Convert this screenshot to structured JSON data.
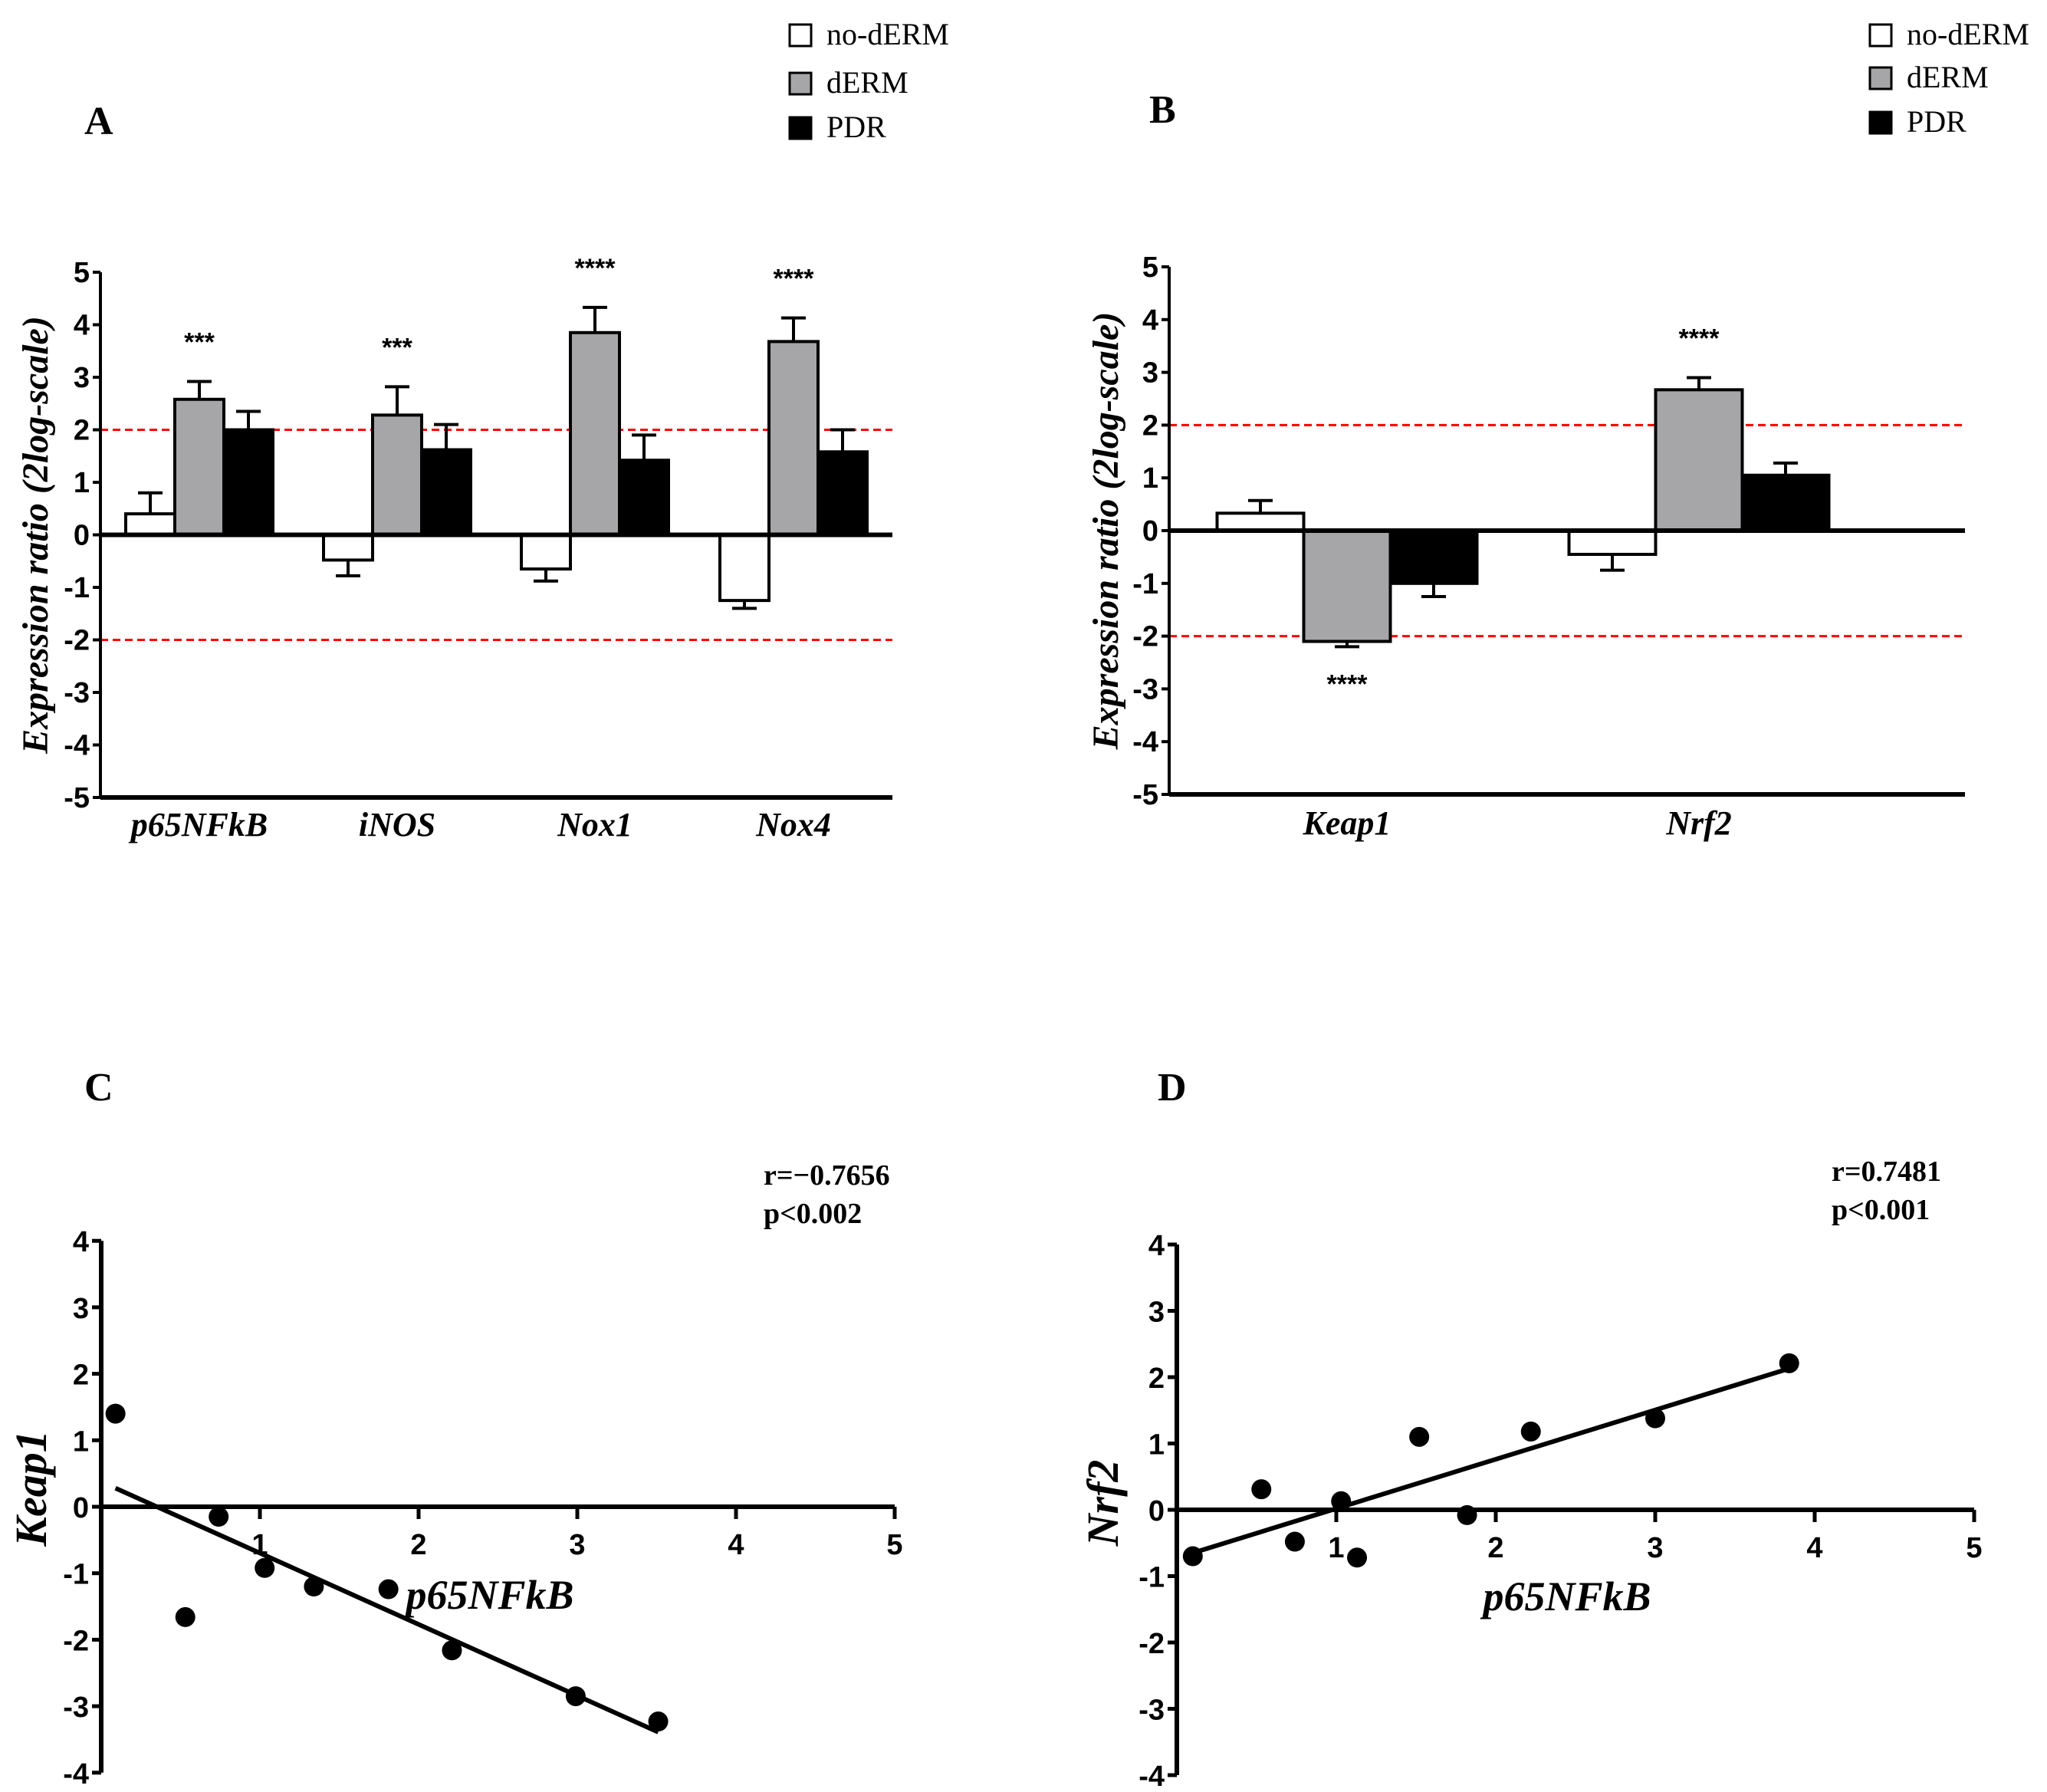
{
  "chart_data": [
    {
      "panel": "A",
      "type": "bar",
      "categories": [
        "p65NFkB",
        "iNOS",
        "Nox1",
        "Nox4"
      ],
      "legend": [
        "no-dERM",
        "dERM",
        "PDR"
      ],
      "legend_placement": "top-right",
      "series_colors": [
        "#ffffff",
        "#a6a6a9",
        "#000000"
      ],
      "series": [
        {
          "name": "no-dERM",
          "values": [
            0.4,
            -0.48,
            -0.65,
            -1.25
          ],
          "error_upper": [
            0.8,
            -0.78,
            -0.88,
            -1.4
          ]
        },
        {
          "name": "dERM",
          "values": [
            2.58,
            2.28,
            3.85,
            3.68
          ],
          "error_upper": [
            2.92,
            2.82,
            4.33,
            4.13
          ]
        },
        {
          "name": "PDR",
          "values": [
            2.0,
            1.62,
            1.42,
            1.58
          ],
          "error_upper": [
            2.35,
            2.1,
            1.9,
            2.0
          ]
        }
      ],
      "significance": [
        {
          "category": "p65NFkB",
          "series": "dERM",
          "label": "***"
        },
        {
          "category": "iNOS",
          "series": "dERM",
          "label": "***"
        },
        {
          "category": "Nox1",
          "series": "dERM",
          "label": "****"
        },
        {
          "category": "Nox4",
          "series": "dERM",
          "label": "****"
        }
      ],
      "reference_lines": [
        2,
        -2
      ],
      "reference_line_color": "#ff0000",
      "ylabel": "Expression ratio (2log-scale)",
      "xlabel": "",
      "ylim": [
        -5,
        5
      ],
      "yticks": [
        "5",
        "4",
        "3",
        "2",
        "1",
        "0",
        "-1",
        "-2",
        "-3",
        "-4",
        "-5"
      ],
      "grid": false
    },
    {
      "panel": "B",
      "type": "bar",
      "categories": [
        "Keap1",
        "Nrf2"
      ],
      "legend": [
        "no-dERM",
        "dERM",
        "PDR"
      ],
      "legend_placement": "top-right",
      "series_colors": [
        "#ffffff",
        "#a6a6a9",
        "#000000"
      ],
      "series": [
        {
          "name": "no-dERM",
          "values": [
            0.33,
            -0.45
          ],
          "error_upper": [
            0.57,
            -0.75
          ]
        },
        {
          "name": "dERM",
          "values": [
            -2.1,
            2.67
          ],
          "error_upper": [
            -2.2,
            2.9
          ]
        },
        {
          "name": "PDR",
          "values": [
            -1.0,
            1.05
          ],
          "error_upper": [
            -1.25,
            1.28
          ]
        }
      ],
      "significance": [
        {
          "category": "Keap1",
          "series": "dERM",
          "label": "****"
        },
        {
          "category": "Nrf2",
          "series": "dERM",
          "label": "****"
        }
      ],
      "reference_lines": [
        2,
        -2
      ],
      "reference_line_color": "#ff0000",
      "ylabel": "Expression ratio (2log-scale)",
      "xlabel": "",
      "ylim": [
        -5,
        5
      ],
      "yticks": [
        "5",
        "4",
        "3",
        "2",
        "1",
        "0",
        "-1",
        "-2",
        "-3",
        "-4",
        "-5"
      ],
      "grid": false
    },
    {
      "panel": "C",
      "type": "scatter",
      "xlabel": "p65NFkB",
      "ylabel": "Keap1",
      "x": [
        0.09,
        0.53,
        0.74,
        1.03,
        1.34,
        1.81,
        2.21,
        2.99,
        3.51
      ],
      "y": [
        1.4,
        -1.66,
        -0.15,
        -0.92,
        -1.2,
        -1.24,
        -2.16,
        -2.85,
        -3.23
      ],
      "fit_line": {
        "x": [
          0.09,
          3.51
        ],
        "y": [
          0.28,
          -3.39
        ]
      },
      "annotation": [
        "r=−0.7656",
        "p<0.002"
      ],
      "xlim": [
        0,
        5
      ],
      "ylim": [
        -4,
        4
      ],
      "xticks": [
        "1",
        "2",
        "3",
        "4",
        "5"
      ],
      "yticks": [
        "4",
        "3",
        "2",
        "1",
        "0",
        "-1",
        "-2",
        "-3",
        "-4"
      ],
      "grid": false
    },
    {
      "panel": "D",
      "type": "scatter",
      "xlabel": "p65NFkB",
      "ylabel": "Nrf2",
      "x": [
        0.1,
        0.53,
        0.74,
        1.03,
        1.13,
        1.52,
        1.82,
        2.22,
        3.0,
        3.84
      ],
      "y": [
        -0.7,
        0.31,
        -0.48,
        0.13,
        -0.72,
        1.1,
        -0.08,
        1.18,
        1.38,
        2.21
      ],
      "fit_line": {
        "x": [
          0.1,
          3.84
        ],
        "y": [
          -0.65,
          2.13
        ]
      },
      "annotation": [
        "r=0.7481",
        "p<0.001"
      ],
      "xlim": [
        0,
        5
      ],
      "ylim": [
        -4,
        4
      ],
      "xticks": [
        "1",
        "2",
        "3",
        "4",
        "5"
      ],
      "yticks": [
        "4",
        "3",
        "2",
        "1",
        "0",
        "-1",
        "-2",
        "-3",
        "-4"
      ],
      "grid": false
    }
  ]
}
